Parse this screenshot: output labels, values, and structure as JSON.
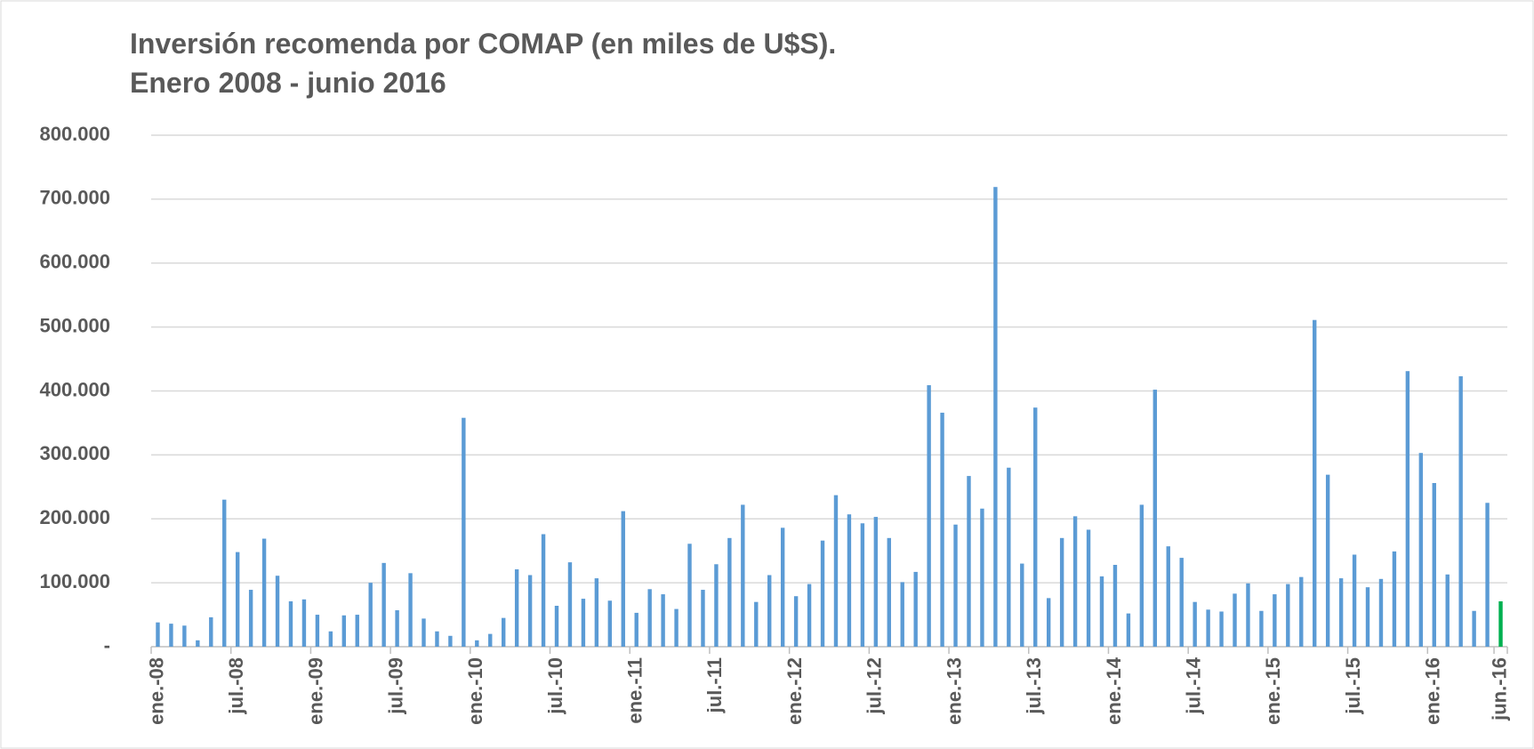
{
  "chart_data": {
    "type": "bar",
    "title": "Inversión recomenda por COMAP (en miles de U$S).",
    "subtitle": "Enero 2008 - junio 2016",
    "categories": [
      "ene.-08",
      null,
      null,
      null,
      null,
      null,
      "jul.-08",
      null,
      null,
      null,
      null,
      null,
      "ene.-09",
      null,
      null,
      null,
      null,
      null,
      "jul.-09",
      null,
      null,
      null,
      null,
      null,
      "ene.-10",
      null,
      null,
      null,
      null,
      null,
      "jul.-10",
      null,
      null,
      null,
      null,
      null,
      "ene.-11",
      null,
      null,
      null,
      null,
      null,
      "jul.-11",
      null,
      null,
      null,
      null,
      null,
      "ene.-12",
      null,
      null,
      null,
      null,
      null,
      "jul.-12",
      null,
      null,
      null,
      null,
      null,
      "ene.-13",
      null,
      null,
      null,
      null,
      null,
      "jul.-13",
      null,
      null,
      null,
      null,
      null,
      "ene.-14",
      null,
      null,
      null,
      null,
      null,
      "jul.-14",
      null,
      null,
      null,
      null,
      null,
      "ene.-15",
      null,
      null,
      null,
      null,
      null,
      "jul.-15",
      null,
      null,
      null,
      null,
      null,
      "ene.-16",
      null,
      null,
      null,
      null,
      "jun.-16"
    ],
    "values": [
      38000,
      36000,
      33000,
      10000,
      46000,
      230000,
      148000,
      89000,
      169000,
      111000,
      71000,
      74000,
      50000,
      24000,
      49000,
      50000,
      100000,
      131000,
      57000,
      115000,
      44000,
      24000,
      17000,
      358000,
      10000,
      20000,
      45000,
      121000,
      112000,
      176000,
      64000,
      132000,
      75000,
      107000,
      72000,
      212000,
      53000,
      90000,
      82000,
      59000,
      161000,
      89000,
      129000,
      170000,
      222000,
      70000,
      112000,
      186000,
      79000,
      98000,
      166000,
      237000,
      207000,
      193000,
      203000,
      170000,
      101000,
      117000,
      409000,
      366000,
      191000,
      267000,
      216000,
      719000,
      280000,
      130000,
      374000,
      76000,
      170000,
      204000,
      183000,
      110000,
      128000,
      52000,
      222000,
      402000,
      157000,
      139000,
      70000,
      58000,
      55000,
      83000,
      99000,
      56000,
      82000,
      98000,
      109000,
      511000,
      269000,
      107000,
      144000,
      93000,
      106000,
      149000,
      431000,
      303000,
      256000,
      113000,
      423000,
      56000,
      225000,
      71000
    ],
    "colors": [
      "#5b9bd5",
      "#5b9bd5",
      "#5b9bd5",
      "#5b9bd5",
      "#5b9bd5",
      "#5b9bd5",
      "#5b9bd5",
      "#5b9bd5",
      "#5b9bd5",
      "#5b9bd5",
      "#5b9bd5",
      "#5b9bd5",
      "#5b9bd5",
      "#5b9bd5",
      "#5b9bd5",
      "#5b9bd5",
      "#5b9bd5",
      "#5b9bd5",
      "#5b9bd5",
      "#5b9bd5",
      "#5b9bd5",
      "#5b9bd5",
      "#5b9bd5",
      "#5b9bd5",
      "#5b9bd5",
      "#5b9bd5",
      "#5b9bd5",
      "#5b9bd5",
      "#5b9bd5",
      "#5b9bd5",
      "#5b9bd5",
      "#5b9bd5",
      "#5b9bd5",
      "#5b9bd5",
      "#5b9bd5",
      "#5b9bd5",
      "#5b9bd5",
      "#5b9bd5",
      "#5b9bd5",
      "#5b9bd5",
      "#5b9bd5",
      "#5b9bd5",
      "#5b9bd5",
      "#5b9bd5",
      "#5b9bd5",
      "#5b9bd5",
      "#5b9bd5",
      "#5b9bd5",
      "#5b9bd5",
      "#5b9bd5",
      "#5b9bd5",
      "#5b9bd5",
      "#5b9bd5",
      "#5b9bd5",
      "#5b9bd5",
      "#5b9bd5",
      "#5b9bd5",
      "#5b9bd5",
      "#5b9bd5",
      "#5b9bd5",
      "#5b9bd5",
      "#5b9bd5",
      "#5b9bd5",
      "#5b9bd5",
      "#5b9bd5",
      "#5b9bd5",
      "#5b9bd5",
      "#5b9bd5",
      "#5b9bd5",
      "#5b9bd5",
      "#5b9bd5",
      "#5b9bd5",
      "#5b9bd5",
      "#5b9bd5",
      "#5b9bd5",
      "#5b9bd5",
      "#5b9bd5",
      "#5b9bd5",
      "#5b9bd5",
      "#5b9bd5",
      "#5b9bd5",
      "#5b9bd5",
      "#5b9bd5",
      "#5b9bd5",
      "#5b9bd5",
      "#5b9bd5",
      "#5b9bd5",
      "#5b9bd5",
      "#5b9bd5",
      "#5b9bd5",
      "#5b9bd5",
      "#5b9bd5",
      "#5b9bd5",
      "#5b9bd5",
      "#5b9bd5",
      "#5b9bd5",
      "#5b9bd5",
      "#5b9bd5",
      "#5b9bd5",
      "#5b9bd5",
      "#5b9bd5",
      "#00b050"
    ],
    "ylim": [
      0,
      800000
    ],
    "yticks": [
      {
        "value": 0,
        "label": "-"
      },
      {
        "value": 100000,
        "label": "100.000"
      },
      {
        "value": 200000,
        "label": "200.000"
      },
      {
        "value": 300000,
        "label": "300.000"
      },
      {
        "value": 400000,
        "label": "400.000"
      },
      {
        "value": 500000,
        "label": "500.000"
      },
      {
        "value": 600000,
        "label": "600.000"
      },
      {
        "value": 700000,
        "label": "700.000"
      },
      {
        "value": 800000,
        "label": "800.000"
      }
    ],
    "grid": true
  }
}
